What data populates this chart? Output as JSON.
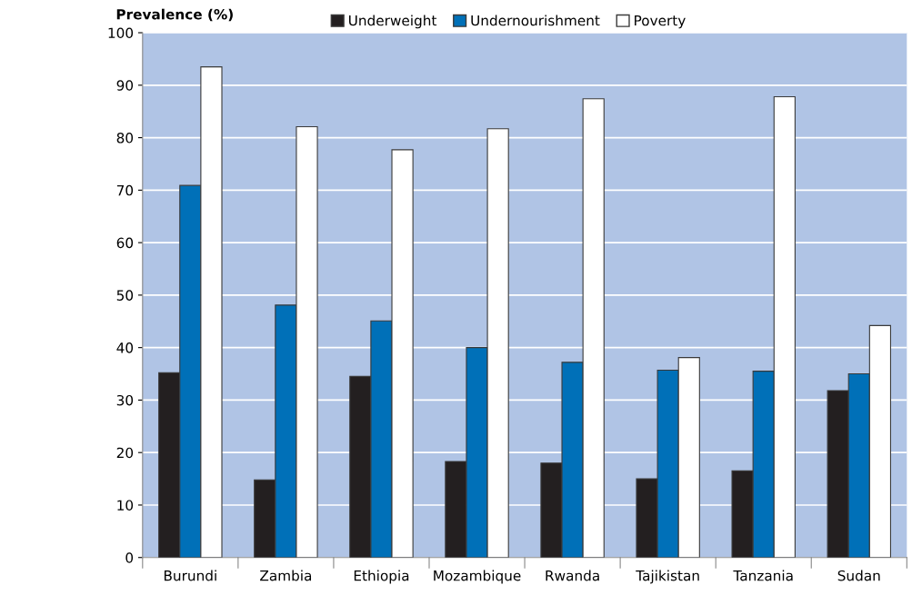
{
  "chart_data": {
    "type": "bar",
    "ylabel": "Prevalence (%)",
    "categories": [
      "Burundi",
      "Zambia",
      "Ethiopia",
      "Mozambique",
      "Rwanda",
      "Tajikistan",
      "Tanzania",
      "Sudan"
    ],
    "series": [
      {
        "name": "Underweight",
        "color": "#231f20",
        "values": [
          35.2,
          14.8,
          34.5,
          18.3,
          18.0,
          15.0,
          16.5,
          31.8
        ]
      },
      {
        "name": "Undernourishment",
        "color": "#0070b8",
        "values": [
          70.9,
          48.1,
          45.1,
          40.0,
          37.2,
          35.7,
          35.5,
          35.0
        ]
      },
      {
        "name": "Poverty",
        "color": "#ffffff",
        "values": [
          93.5,
          82.1,
          77.7,
          81.7,
          87.4,
          38.1,
          87.8,
          44.2
        ]
      }
    ],
    "ylim": [
      0,
      100
    ],
    "yticks": [
      0,
      10,
      20,
      30,
      40,
      50,
      60,
      70,
      80,
      90,
      100
    ],
    "grid": "y",
    "legend": "top right"
  }
}
